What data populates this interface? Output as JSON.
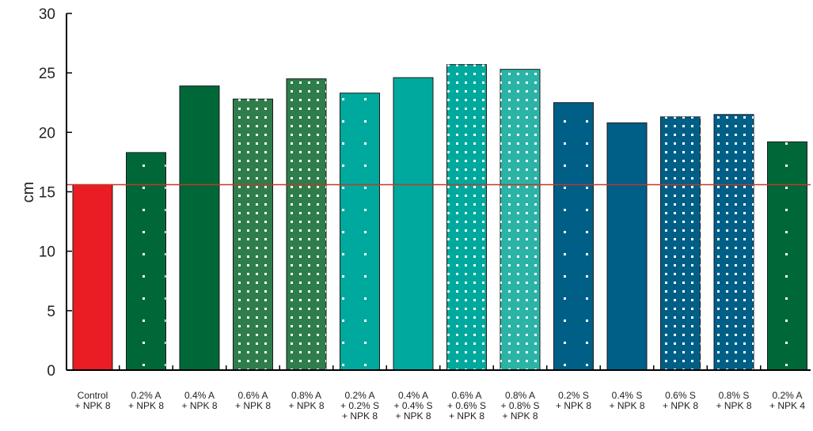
{
  "chart_data": {
    "type": "bar",
    "title": "",
    "xlabel": "",
    "ylabel": "cm",
    "ylim": [
      0,
      30
    ],
    "yticks": [
      0,
      5,
      10,
      15,
      20,
      25,
      30
    ],
    "grid": false,
    "reference_line": {
      "value": 15.6,
      "color": "#c0392b"
    },
    "categories": [
      [
        "Control",
        "+ NPK 8"
      ],
      [
        "0.2% A",
        "+ NPK 8"
      ],
      [
        "0.4% A",
        "+ NPK 8"
      ],
      [
        "0.6% A",
        "+ NPK 8"
      ],
      [
        "0.8% A",
        "+ NPK 8"
      ],
      [
        "0.2% A",
        "+ 0.2% S",
        "+ NPK 8"
      ],
      [
        "0.4% A",
        "+ 0.4% S",
        "+ NPK 8"
      ],
      [
        "0.6% A",
        "+ 0.6% S",
        "+ NPK 8"
      ],
      [
        "0.8% A",
        "+ 0.8% S",
        "+ NPK 8"
      ],
      [
        "0.2% S",
        "+ NPK 8"
      ],
      [
        "0.4% S",
        "+ NPK 8"
      ],
      [
        "0.6% S",
        "+ NPK 8"
      ],
      [
        "0.8% S",
        "+ NPK 8"
      ],
      [
        "0.2% A",
        "+ NPK 4"
      ]
    ],
    "values": [
      15.6,
      18.3,
      23.9,
      22.8,
      24.5,
      23.3,
      24.6,
      25.7,
      25.3,
      22.5,
      20.8,
      21.3,
      21.5,
      19.2
    ],
    "colors": [
      "#ea1c24",
      "#006838",
      "#006838",
      "#2e7d4a",
      "#2e7d4a",
      "#00a99d",
      "#00a99d",
      "#00a99d",
      "#2bb3a6",
      "#005f87",
      "#005f87",
      "#005f87",
      "#005f87",
      "#006838"
    ],
    "patterns": [
      "solid",
      "sparse-dots",
      "solid",
      "dense-dots",
      "dense-dots",
      "sparse-dots",
      "solid",
      "dense-dots",
      "dense-dots",
      "sparse-dots",
      "solid",
      "dense-dots",
      "dense-dots",
      "sparse-dots"
    ]
  }
}
